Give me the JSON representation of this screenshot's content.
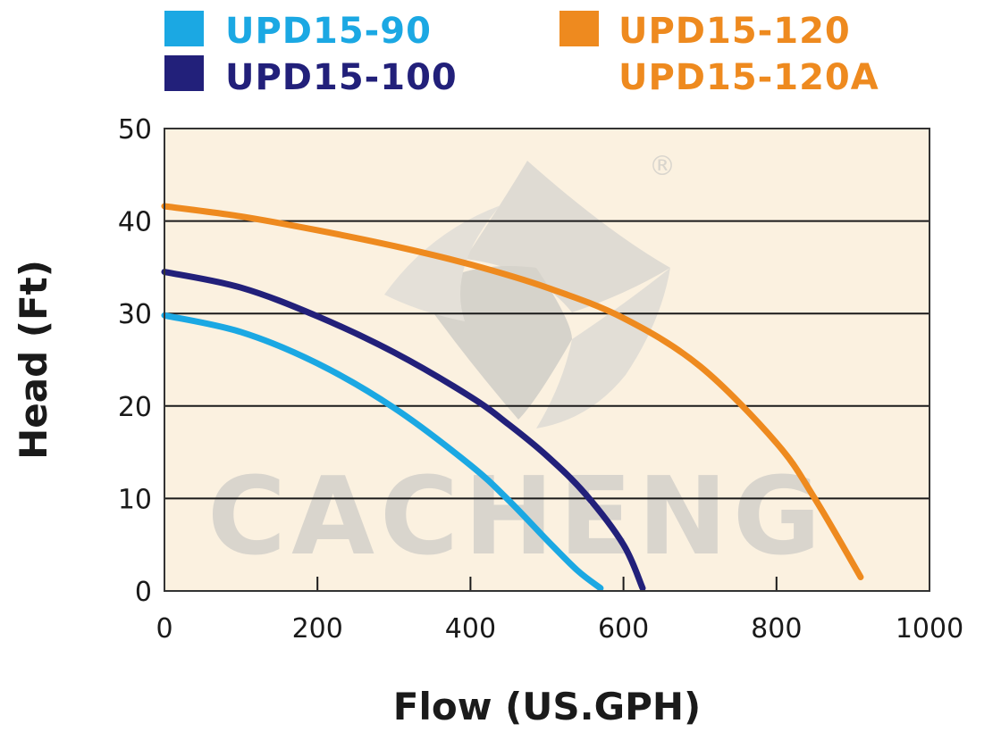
{
  "watermark": {
    "text": "CACHENG",
    "registered": "®"
  },
  "chart_data": {
    "type": "line",
    "xlabel": "Flow (US.GPH)",
    "ylabel": "Head (Ft)",
    "xlim": [
      0,
      1000
    ],
    "ylim": [
      0,
      50
    ],
    "xticks": [
      0,
      200,
      400,
      600,
      800,
      1000
    ],
    "yticks": [
      0,
      10,
      20,
      30,
      40,
      50
    ],
    "grid": "horizontal",
    "legend_position": "top",
    "colors": {
      "plot_bg": "#fbf1e0",
      "grid": "#1a1a1a",
      "frame": "#333333"
    },
    "series": [
      {
        "name": "UPD15-90",
        "color": "#1ba8e3",
        "x": [
          0,
          100,
          200,
          300,
          400,
          450,
          500,
          540,
          570
        ],
        "y": [
          29.8,
          28.0,
          24.6,
          19.8,
          13.6,
          9.8,
          5.5,
          2.2,
          0.3
        ]
      },
      {
        "name": "UPD15-100",
        "color": "#22207a",
        "x": [
          0,
          100,
          200,
          300,
          400,
          450,
          500,
          550,
          600,
          625
        ],
        "y": [
          34.5,
          32.8,
          29.7,
          25.8,
          21.0,
          18.0,
          14.6,
          10.5,
          5.0,
          0.3
        ]
      },
      {
        "name": "UPD15-120",
        "color": "#ee8a1f",
        "x": [
          0,
          100,
          200,
          300,
          400,
          500,
          600,
          700,
          800,
          850,
          910
        ],
        "y": [
          41.6,
          40.5,
          39.0,
          37.3,
          35.3,
          32.8,
          29.5,
          24.3,
          16.0,
          10.0,
          1.5
        ]
      }
    ],
    "legend_extra": [
      {
        "name": "UPD15-120A",
        "color": "#ee8a1f"
      }
    ]
  }
}
